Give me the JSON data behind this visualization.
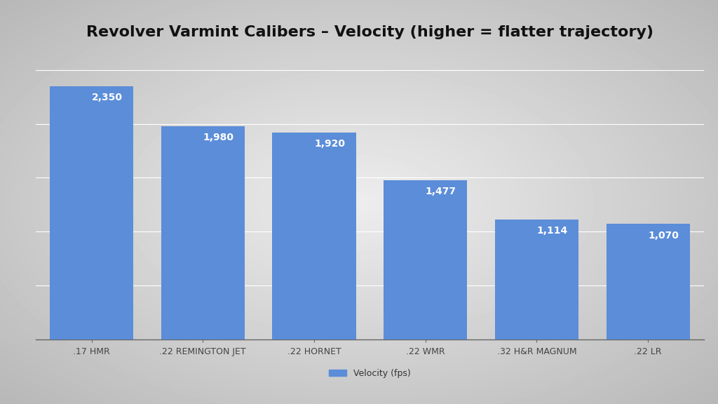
{
  "title": "Revolver Varmint Calibers – Velocity (higher = flatter trajectory)",
  "categories": [
    ".17 HMR",
    ".22 REMINGTON JET",
    ".22 HORNET",
    ".22 WMR",
    ".32 H&R MAGNUM",
    ".22 LR"
  ],
  "values": [
    2350,
    1980,
    1920,
    1477,
    1114,
    1070
  ],
  "bar_color": "#5B8DD9",
  "bar_labels": [
    "2,350",
    "1,980",
    "1,920",
    "1,477",
    "1,114",
    "1,070"
  ],
  "label_color": "#FFFFFF",
  "label_fontsize": 10,
  "title_fontsize": 16,
  "legend_label": "Velocity (fps)",
  "ylim": [
    0,
    2700
  ],
  "grid_color": "#FFFFFF",
  "tick_label_fontsize": 9,
  "bar_width": 0.75,
  "fig_bg_left": "#BBBBBB",
  "fig_bg_center": "#E8E8E8",
  "plot_bg_top": "#DDDDDD",
  "plot_bg_bottom": "#C8C8C8"
}
